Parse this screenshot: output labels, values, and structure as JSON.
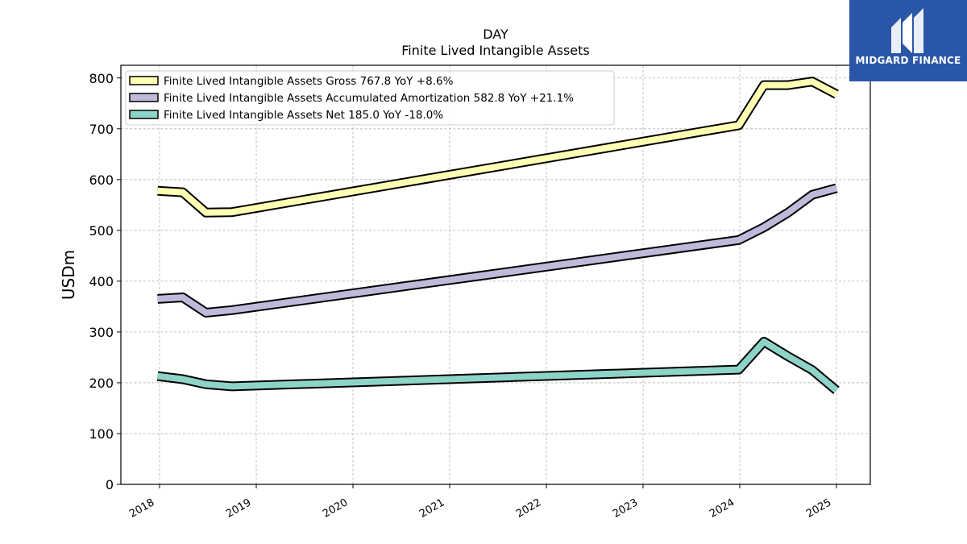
{
  "header": {
    "title_line1": "DAY",
    "title_line2": "Finite Lived Intangible Assets"
  },
  "logo": {
    "text": "MIDGARD FINANCE",
    "background": "#2a56a8",
    "icon": "midgard-logo-mark-icon"
  },
  "chart_data": {
    "type": "line",
    "title": "DAY",
    "subtitle": "Finite Lived Intangible Assets",
    "xlabel": "",
    "ylabel": "USDm",
    "xlim": [
      2017.6,
      2025.35
    ],
    "ylim": [
      0,
      825
    ],
    "grid": true,
    "legend_position": "top-left",
    "x_ticks": [
      2018,
      2019,
      2020,
      2021,
      2022,
      2023,
      2024,
      2025
    ],
    "x_tick_labels": [
      "2018",
      "2019",
      "2020",
      "2021",
      "2022",
      "2023",
      "2024",
      "2025"
    ],
    "y_ticks": [
      0,
      100,
      200,
      300,
      400,
      500,
      600,
      700,
      800
    ],
    "y_tick_labels": [
      "0",
      "100",
      "200",
      "300",
      "400",
      "500",
      "600",
      "700",
      "800"
    ],
    "x": [
      2017.98,
      2018.24,
      2018.48,
      2018.75,
      2023.99,
      2024.25,
      2024.5,
      2024.75,
      2025.0
    ],
    "series": [
      {
        "name": "Finite Lived Intangible Assets Gross",
        "legend": "Finite Lived Intangible Assets Gross  767.8 YoY +8.6%",
        "color": "#ffffb3",
        "values": [
          578,
          575,
          535,
          536,
          707,
          786,
          786,
          793,
          768
        ]
      },
      {
        "name": "Finite Lived Intangible Assets Accumulated Amortization",
        "legend": "Finite Lived Intangible Assets Accumulated Amortization  582.8 YoY +21.1%",
        "color": "#bebada",
        "values": [
          365,
          368,
          338,
          343,
          481,
          506,
          535,
          570,
          583
        ]
      },
      {
        "name": "Finite Lived Intangible Assets Net",
        "legend": "Finite Lived Intangible Assets Net  185.0 YoY -18.0%",
        "color": "#8dd3c7",
        "values": [
          213,
          207,
          197,
          193,
          226,
          281,
          252,
          225,
          185
        ]
      }
    ]
  }
}
